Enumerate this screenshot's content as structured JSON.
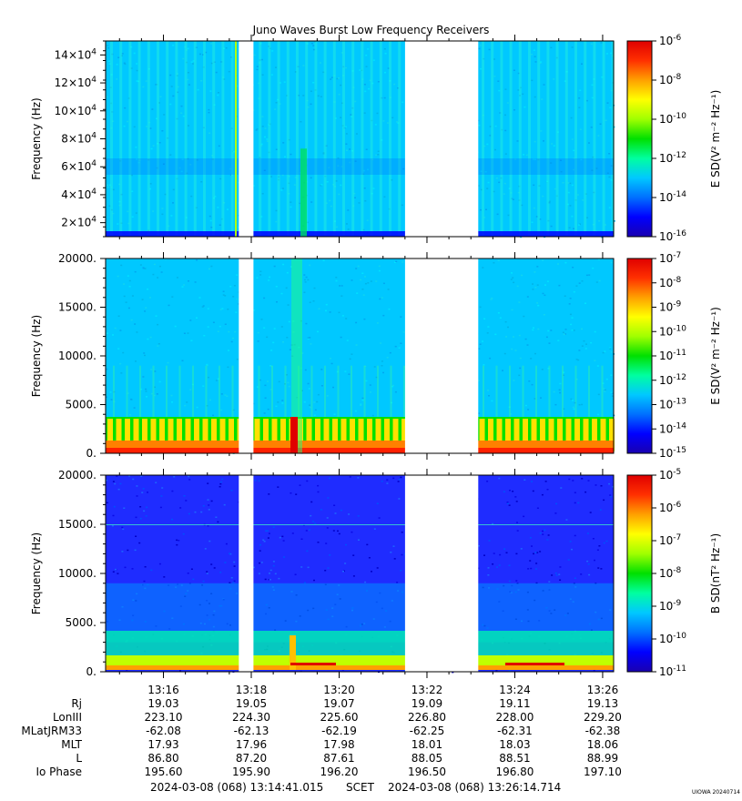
{
  "chart_data": [
    {
      "type": "heatmap",
      "title": "Juno Waves Burst Low Frequency Receivers",
      "ylabel": "Frequency (Hz)",
      "ylim": [
        10000,
        150000
      ],
      "yticks": [
        20000,
        40000,
        60000,
        80000,
        100000,
        120000,
        140000
      ],
      "ytick_labels": [
        [
          "2",
          "4"
        ],
        [
          "4",
          "4"
        ],
        [
          "6",
          "4"
        ],
        [
          "8",
          "4"
        ],
        [
          "10",
          "4"
        ],
        [
          "12",
          "4"
        ],
        [
          "14",
          "4"
        ]
      ],
      "xlim": [
        "13:14:41",
        "13:26:15"
      ],
      "colorbar": {
        "label": "E SD(V² m⁻² Hz⁻¹)",
        "scale": "log",
        "range": [
          1e-16,
          1e-06
        ],
        "tick_labels": [
          "10^-6",
          "10^-8",
          "10^-10",
          "10^-12",
          "10^-14",
          "10^-16"
        ]
      },
      "data_gaps": [
        [
          "13:17:43",
          "13:18:03"
        ],
        [
          "13:21:30",
          "13:23:10"
        ]
      ]
    },
    {
      "type": "heatmap",
      "ylabel": "Frequency (Hz)",
      "ylim": [
        0,
        20000
      ],
      "yticks": [
        0,
        5000,
        10000,
        15000,
        20000
      ],
      "ytick_labels": [
        "0.",
        "5000.",
        "10000.",
        "15000.",
        "20000."
      ],
      "xlim": [
        "13:14:41",
        "13:26:15"
      ],
      "colorbar": {
        "label": "E SD(V² m⁻² Hz⁻¹)",
        "scale": "log",
        "range": [
          1e-15,
          1e-07
        ],
        "tick_labels": [
          "10^-7",
          "10^-8",
          "10^-9",
          "10^-10",
          "10^-11",
          "10^-12",
          "10^-13",
          "10^-14",
          "10^-15"
        ]
      },
      "data_gaps": [
        [
          "13:17:43",
          "13:18:03"
        ],
        [
          "13:21:30",
          "13:23:10"
        ]
      ]
    },
    {
      "type": "heatmap",
      "ylabel": "Frequency (Hz)",
      "ylim": [
        0,
        20000
      ],
      "yticks": [
        0,
        5000,
        10000,
        15000,
        20000
      ],
      "ytick_labels": [
        "0.",
        "5000.",
        "10000.",
        "15000.",
        "20000."
      ],
      "xlim": [
        "13:14:41",
        "13:26:15"
      ],
      "colorbar": {
        "label": "B SD(nT² Hz⁻¹)",
        "scale": "log",
        "range": [
          1e-11,
          0.0001
        ],
        "tick_labels": [
          "10^-5",
          "10^-6",
          "10^-7",
          "10^-8",
          "10^-9",
          "10^-10",
          "10^-11"
        ]
      },
      "data_gaps": [
        [
          "13:17:43",
          "13:18:03"
        ],
        [
          "13:21:30",
          "13:23:10"
        ]
      ]
    }
  ],
  "xaxis": {
    "tick_labels": [
      "13:16",
      "13:18",
      "13:20",
      "13:22",
      "13:24",
      "13:26"
    ]
  },
  "ephemeris": {
    "labels": [
      "Rj",
      "LonIII",
      "MLatJRM33",
      "MLT",
      "L",
      "Io Phase"
    ],
    "rows": [
      [
        "19.03",
        "19.05",
        "19.07",
        "19.09",
        "19.11",
        "19.13"
      ],
      [
        "223.10",
        "224.30",
        "225.60",
        "226.80",
        "228.00",
        "229.20"
      ],
      [
        "-62.08",
        "-62.13",
        "-62.19",
        "-62.25",
        "-62.31",
        "-62.38"
      ],
      [
        "17.93",
        "17.96",
        "17.98",
        "18.01",
        "18.03",
        "18.06"
      ],
      [
        "86.80",
        "87.20",
        "87.61",
        "88.05",
        "88.51",
        "88.99"
      ],
      [
        "195.60",
        "195.90",
        "196.20",
        "196.50",
        "196.80",
        "197.10"
      ]
    ]
  },
  "footer": {
    "start": "2024-03-08 (068) 13:14:41.015",
    "scet": "SCET",
    "end": "2024-03-08 (068) 13:26:14.714",
    "stamp": "UIOWA 20240714"
  },
  "colors": {
    "background": "#ffffff",
    "colormap": [
      "#1a00b0",
      "#0000ff",
      "#0070ff",
      "#00c8ff",
      "#00ffa0",
      "#00e000",
      "#a0ff00",
      "#ffff00",
      "#ffa000",
      "#ff3000",
      "#e00000"
    ]
  }
}
